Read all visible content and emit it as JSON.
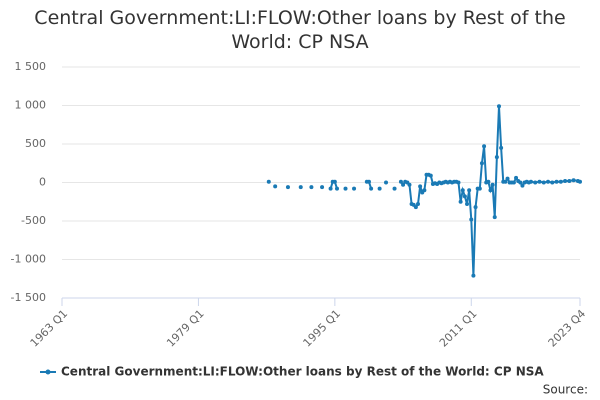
{
  "chart_data": {
    "type": "line",
    "title": "Central Government:LI:FLOW:Other loans by Rest of the World: CP NSA",
    "source": "Source:",
    "xlim": [
      1963,
      2023.75
    ],
    "xticks": [
      {
        "value": 1963,
        "label": "1963 Q1"
      },
      {
        "value": 1979,
        "label": "1979 Q1"
      },
      {
        "value": 1995,
        "label": "1995 Q1"
      },
      {
        "value": 2011,
        "label": "2011 Q1"
      },
      {
        "value": 2023.75,
        "label": "2023 Q4"
      }
    ],
    "ylim": [
      -1500,
      1500
    ],
    "yticks": [
      {
        "value": -1500,
        "label": "-1 500"
      },
      {
        "value": -1000,
        "label": "-1 000"
      },
      -500,
      0,
      500,
      {
        "value": 1000,
        "label": "1 000"
      },
      {
        "value": 1500,
        "label": "1 500"
      }
    ],
    "grid": true,
    "legend": "bottom",
    "x": [
      1987.25,
      1987.5,
      1988.0,
      1988.25,
      1989.5,
      1989.75,
      1991.0,
      1991.25,
      1992.25,
      1992.5,
      1993.5,
      1993.75,
      1994.5,
      1994.75,
      1995.0,
      1995.25,
      1995.5,
      1996.25,
      1996.5,
      1997.25,
      1997.5,
      1998.75,
      1999.0,
      1999.25,
      1999.5,
      2000.25,
      2000.5,
      2001.0,
      2001.25,
      2002.0,
      2002.25,
      2002.75,
      2003.0,
      2003.25,
      2003.5,
      2003.75,
      2004.0,
      2004.25,
      2004.5,
      2004.75,
      2005.0,
      2005.25,
      2005.5,
      2005.75,
      2006.0,
      2006.25,
      2006.5,
      2006.75,
      2007.0,
      2007.25,
      2007.5,
      2007.75,
      2008.0,
      2008.25,
      2008.5,
      2008.75,
      2009.0,
      2009.25,
      2009.5,
      2009.75,
      2010.0,
      2010.25,
      2010.5,
      2010.75,
      2011.0,
      2011.25,
      2011.5,
      2011.75,
      2012.0,
      2012.25,
      2012.5,
      2012.75,
      2013.0,
      2013.25,
      2013.5,
      2013.75,
      2014.0,
      2014.25,
      2014.5,
      2014.75,
      2015.0,
      2015.25,
      2015.5,
      2015.75,
      2016.0,
      2016.25,
      2016.5,
      2016.75,
      2017.0,
      2017.25,
      2017.5,
      2017.75,
      2018.0,
      2018.5,
      2019.0,
      2019.5,
      2020.0,
      2020.5,
      2021.0,
      2021.5,
      2022.0,
      2022.5,
      2023.0,
      2023.5,
      2023.75
    ],
    "series": [
      {
        "name": "Central Government:LI:FLOW:Other loans by Rest of the World: CP NSA",
        "color": "#1a7ab5",
        "values": [
          10,
          null,
          -50,
          null,
          -60,
          null,
          -60,
          null,
          -60,
          null,
          -60,
          null,
          -80,
          10,
          10,
          -80,
          null,
          -80,
          null,
          -80,
          null,
          10,
          10,
          -80,
          null,
          -80,
          null,
          0,
          null,
          -80,
          null,
          10,
          -30,
          10,
          0,
          -30,
          -280,
          -290,
          -320,
          -280,
          -50,
          -130,
          -100,
          100,
          100,
          90,
          -20,
          -10,
          -20,
          0,
          -10,
          0,
          10,
          0,
          10,
          0,
          10,
          10,
          0,
          -250,
          -100,
          -180,
          -280,
          -100,
          -480,
          -1210,
          -320,
          -80,
          -80,
          250,
          470,
          0,
          10,
          -100,
          -30,
          -450,
          330,
          990,
          450,
          10,
          10,
          50,
          0,
          0,
          0,
          60,
          20,
          0,
          -40,
          0,
          10,
          0,
          10,
          0,
          10,
          0,
          10,
          0,
          10,
          10,
          20,
          20,
          30,
          20,
          10
        ]
      }
    ]
  }
}
